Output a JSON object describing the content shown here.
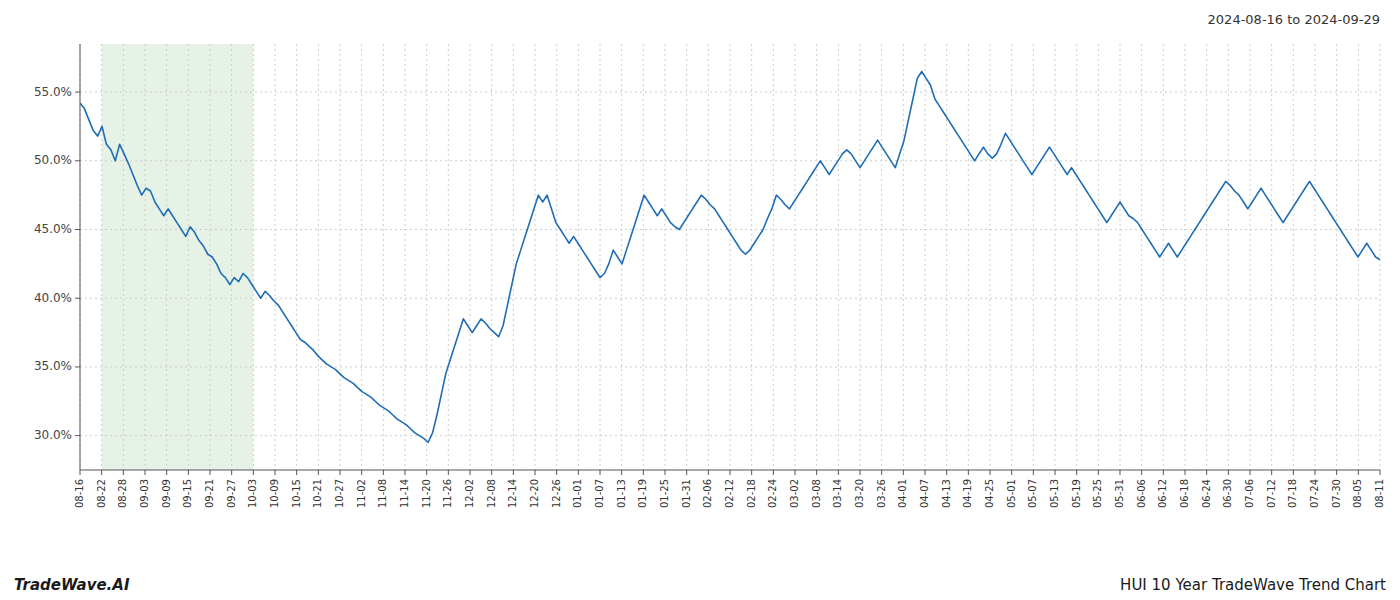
{
  "chart_data": {
    "type": "line",
    "title": "HUI 10 Year TradeWave Trend Chart",
    "subtitle": "2024-08-16 to 2024-09-29",
    "annotations": [
      "TradeWave.AI"
    ],
    "color": "#1f6db5",
    "grid": true,
    "shade": {
      "from": 4.916667,
      "to": 39.333333,
      "color": "#d6ead6"
    },
    "xlim": [
      0,
      295
    ],
    "xticks": [
      {
        "value": 0,
        "label": "08-16"
      },
      {
        "value": 4.916667,
        "label": "08-22"
      },
      {
        "value": 9.833333,
        "label": "08-28"
      },
      {
        "value": 14.75,
        "label": "09-03"
      },
      {
        "value": 19.666667,
        "label": "09-09"
      },
      {
        "value": 24.583333,
        "label": "09-15"
      },
      {
        "value": 29.5,
        "label": "09-21"
      },
      {
        "value": 34.416667,
        "label": "09-27"
      },
      {
        "value": 39.333333,
        "label": "10-03"
      },
      {
        "value": 44.25,
        "label": "10-09"
      },
      {
        "value": 49.166667,
        "label": "10-15"
      },
      {
        "value": 54.083333,
        "label": "10-21"
      },
      {
        "value": 59,
        "label": "10-27"
      },
      {
        "value": 63.916667,
        "label": "11-02"
      },
      {
        "value": 68.833333,
        "label": "11-08"
      },
      {
        "value": 73.75,
        "label": "11-14"
      },
      {
        "value": 78.666667,
        "label": "11-20"
      },
      {
        "value": 83.583333,
        "label": "11-26"
      },
      {
        "value": 88.5,
        "label": "12-02"
      },
      {
        "value": 93.416667,
        "label": "12-08"
      },
      {
        "value": 98.333333,
        "label": "12-14"
      },
      {
        "value": 103.25,
        "label": "12-20"
      },
      {
        "value": 108.166667,
        "label": "12-26"
      },
      {
        "value": 113.083333,
        "label": "01-01"
      },
      {
        "value": 118,
        "label": "01-07"
      },
      {
        "value": 122.916667,
        "label": "01-13"
      },
      {
        "value": 127.833333,
        "label": "01-19"
      },
      {
        "value": 132.75,
        "label": "01-25"
      },
      {
        "value": 137.666667,
        "label": "01-31"
      },
      {
        "value": 142.583333,
        "label": "02-06"
      },
      {
        "value": 147.5,
        "label": "02-12"
      },
      {
        "value": 152.416667,
        "label": "02-18"
      },
      {
        "value": 157.333333,
        "label": "02-24"
      },
      {
        "value": 162.25,
        "label": "03-02"
      },
      {
        "value": 167.166667,
        "label": "03-08"
      },
      {
        "value": 172.083333,
        "label": "03-14"
      },
      {
        "value": 177,
        "label": "03-20"
      },
      {
        "value": 181.916667,
        "label": "03-26"
      },
      {
        "value": 186.833333,
        "label": "04-01"
      },
      {
        "value": 191.75,
        "label": "04-07"
      },
      {
        "value": 196.666667,
        "label": "04-13"
      },
      {
        "value": 201.583333,
        "label": "04-19"
      },
      {
        "value": 206.5,
        "label": "04-25"
      },
      {
        "value": 211.416667,
        "label": "05-01"
      },
      {
        "value": 216.333333,
        "label": "05-07"
      },
      {
        "value": 221.25,
        "label": "05-13"
      },
      {
        "value": 226.166667,
        "label": "05-19"
      },
      {
        "value": 231.083333,
        "label": "05-25"
      },
      {
        "value": 236,
        "label": "05-31"
      },
      {
        "value": 240.916667,
        "label": "06-06"
      },
      {
        "value": 245.833333,
        "label": "06-12"
      },
      {
        "value": 250.75,
        "label": "06-18"
      },
      {
        "value": 255.666667,
        "label": "06-24"
      },
      {
        "value": 260.583333,
        "label": "06-30"
      },
      {
        "value": 265.5,
        "label": "07-06"
      },
      {
        "value": 270.416667,
        "label": "07-12"
      },
      {
        "value": 275.333333,
        "label": "07-18"
      },
      {
        "value": 280.25,
        "label": "07-24"
      },
      {
        "value": 285.166667,
        "label": "07-30"
      },
      {
        "value": 290.083333,
        "label": "08-05"
      },
      {
        "value": 295,
        "label": "08-11"
      }
    ],
    "ylim": [
      27.5,
      58.5
    ],
    "yticks": [
      {
        "value": 30.0,
        "label": "30.0%"
      },
      {
        "value": 35.0,
        "label": "35.0%"
      },
      {
        "value": 40.0,
        "label": "40.0%"
      },
      {
        "value": 45.0,
        "label": "45.0%"
      },
      {
        "value": 50.0,
        "label": "50.0%"
      },
      {
        "value": 55.0,
        "label": "55.0%"
      }
    ],
    "values": [
      54.2,
      53.8,
      53.0,
      52.2,
      51.8,
      52.5,
      51.2,
      50.8,
      50.0,
      51.2,
      50.5,
      49.8,
      49.0,
      48.2,
      47.5,
      48.0,
      47.8,
      47.0,
      46.5,
      46.0,
      46.5,
      46.0,
      45.5,
      45.0,
      44.5,
      45.2,
      44.8,
      44.2,
      43.8,
      43.2,
      43.0,
      42.5,
      41.8,
      41.5,
      41.0,
      41.5,
      41.2,
      41.8,
      41.5,
      41.0,
      40.5,
      40.0,
      40.5,
      40.2,
      39.8,
      39.5,
      39.0,
      38.5,
      38.0,
      37.5,
      37.0,
      36.8,
      36.5,
      36.2,
      35.8,
      35.5,
      35.2,
      35.0,
      34.8,
      34.5,
      34.2,
      34.0,
      33.8,
      33.5,
      33.2,
      33.0,
      32.8,
      32.5,
      32.2,
      32.0,
      31.8,
      31.5,
      31.2,
      31.0,
      30.8,
      30.5,
      30.2,
      30.0,
      29.8,
      29.5,
      30.2,
      31.5,
      33.0,
      34.5,
      35.5,
      36.5,
      37.5,
      38.5,
      38.0,
      37.5,
      38.0,
      38.5,
      38.2,
      37.8,
      37.5,
      37.2,
      38.0,
      39.5,
      41.0,
      42.5,
      43.5,
      44.5,
      45.5,
      46.5,
      47.5,
      47.0,
      47.5,
      46.5,
      45.5,
      45.0,
      44.5,
      44.0,
      44.5,
      44.0,
      43.5,
      43.0,
      42.5,
      42.0,
      41.5,
      41.8,
      42.5,
      43.5,
      43.0,
      42.5,
      43.5,
      44.5,
      45.5,
      46.5,
      47.5,
      47.0,
      46.5,
      46.0,
      46.5,
      46.0,
      45.5,
      45.2,
      45.0,
      45.5,
      46.0,
      46.5,
      47.0,
      47.5,
      47.2,
      46.8,
      46.5,
      46.0,
      45.5,
      45.0,
      44.5,
      44.0,
      43.5,
      43.2,
      43.5,
      44.0,
      44.5,
      45.0,
      45.8,
      46.5,
      47.5,
      47.2,
      46.8,
      46.5,
      47.0,
      47.5,
      48.0,
      48.5,
      49.0,
      49.5,
      50.0,
      49.5,
      49.0,
      49.5,
      50.0,
      50.5,
      50.8,
      50.5,
      50.0,
      49.5,
      50.0,
      50.5,
      51.0,
      51.5,
      51.0,
      50.5,
      50.0,
      49.5,
      50.5,
      51.5,
      53.0,
      54.5,
      56.0,
      56.5,
      56.0,
      55.5,
      54.5,
      54.0,
      53.5,
      53.0,
      52.5,
      52.0,
      51.5,
      51.0,
      50.5,
      50.0,
      50.5,
      51.0,
      50.5,
      50.2,
      50.5,
      51.2,
      52.0,
      51.5,
      51.0,
      50.5,
      50.0,
      49.5,
      49.0,
      49.5,
      50.0,
      50.5,
      51.0,
      50.5,
      50.0,
      49.5,
      49.0,
      49.5,
      49.0,
      48.5,
      48.0,
      47.5,
      47.0,
      46.5,
      46.0,
      45.5,
      46.0,
      46.5,
      47.0,
      46.5,
      46.0,
      45.8,
      45.5,
      45.0,
      44.5,
      44.0,
      43.5,
      43.0,
      43.5,
      44.0,
      43.5,
      43.0,
      43.5,
      44.0,
      44.5,
      45.0,
      45.5,
      46.0,
      46.5,
      47.0,
      47.5,
      48.0,
      48.5,
      48.2,
      47.8,
      47.5,
      47.0,
      46.5,
      47.0,
      47.5,
      48.0,
      47.5,
      47.0,
      46.5,
      46.0,
      45.5,
      46.0,
      46.5,
      47.0,
      47.5,
      48.0,
      48.5,
      48.0,
      47.5,
      47.0,
      46.5,
      46.0,
      45.5,
      45.0,
      44.5,
      44.0,
      43.5,
      43.0,
      43.5,
      44.0,
      43.5,
      43.0,
      42.8
    ]
  }
}
